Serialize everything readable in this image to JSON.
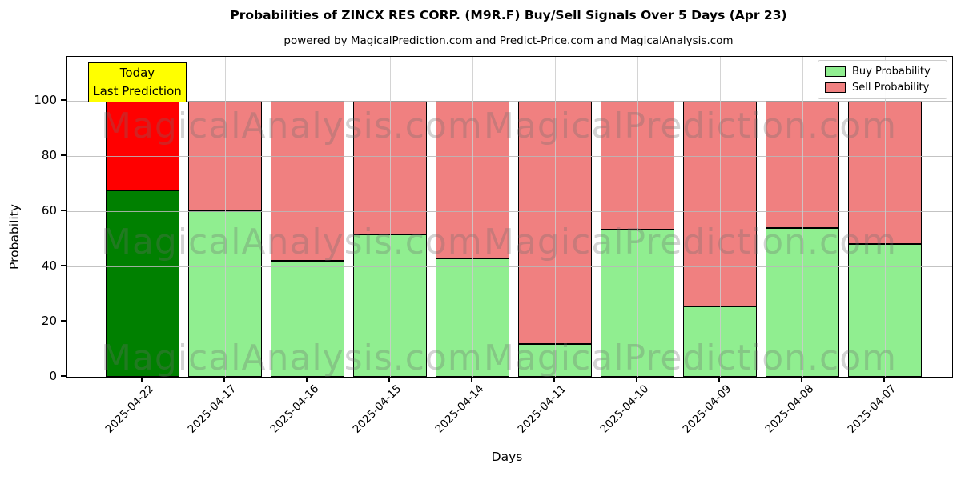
{
  "title": "Probabilities of ZINCX RES CORP. (M9R.F) Buy/Sell Signals Over 5 Days (Apr 23)",
  "subtitle": "powered by MagicalPrediction.com and Predict-Price.com and MagicalAnalysis.com",
  "annotation": {
    "line1": "Today",
    "line2": "Last Prediction",
    "bg_color": "#ffff00"
  },
  "legend": {
    "items": [
      {
        "label": "Buy Probability",
        "color": "#90ee90"
      },
      {
        "label": "Sell Probability",
        "color": "#f08080"
      }
    ]
  },
  "axes": {
    "xlabel": "Days",
    "ylabel": "Probability",
    "yticks": [
      0,
      20,
      40,
      60,
      80,
      100
    ],
    "ymax": 116,
    "dashed_line_y": 110
  },
  "watermarks": [
    {
      "text": "MagicalAnalysis.com"
    },
    {
      "text": "MagicalPrediction.com"
    }
  ],
  "chart_data": {
    "type": "bar",
    "stacked": true,
    "title": "Probabilities of ZINCX RES CORP. (M9R.F) Buy/Sell Signals Over 5 Days (Apr 23)",
    "xlabel": "Days",
    "ylabel": "Probability",
    "ylim": [
      0,
      116
    ],
    "grid": true,
    "legend_position": "upper right",
    "dashed_guide_y": 110,
    "categories": [
      "2025-04-22",
      "2025-04-17",
      "2025-04-16",
      "2025-04-15",
      "2025-04-14",
      "2025-04-11",
      "2025-04-10",
      "2025-04-09",
      "2025-04-08",
      "2025-04-07"
    ],
    "series": [
      {
        "name": "Buy Probability",
        "values": [
          67.5,
          60,
          42,
          51.5,
          43,
          12,
          53.5,
          25.5,
          54,
          48
        ]
      },
      {
        "name": "Sell Probability",
        "values": [
          32.5,
          40,
          58,
          48.5,
          57,
          88,
          46.5,
          74.5,
          46,
          52
        ]
      }
    ],
    "today_index": 0,
    "bar_colors": {
      "buy_default": "#90ee90",
      "sell_default": "#f08080",
      "buy_today": "#008000",
      "sell_today": "#ff0000",
      "edge": "#000000"
    }
  }
}
